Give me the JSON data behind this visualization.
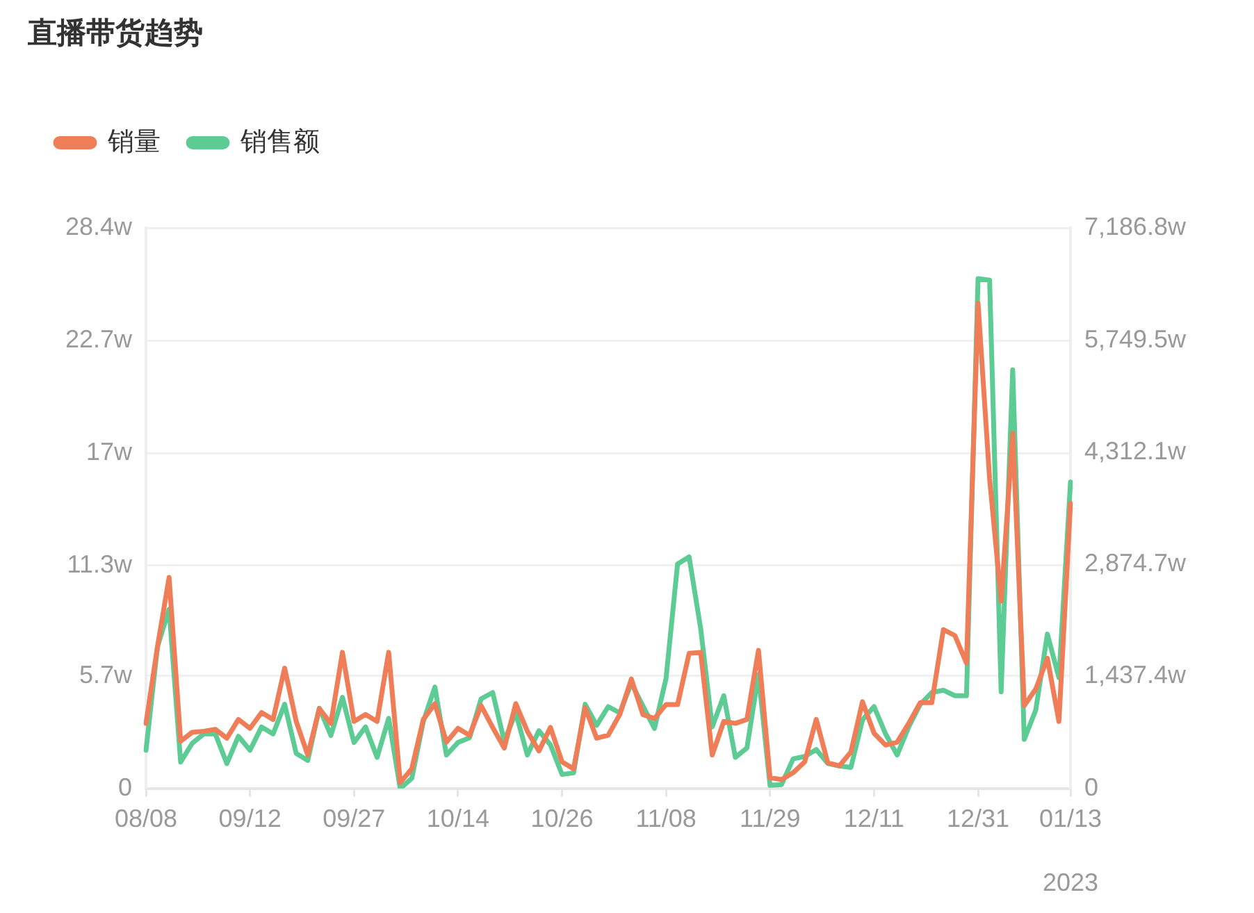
{
  "chart_data": {
    "type": "line",
    "title": "直播带货趋势",
    "categories": [
      "08/08",
      null,
      null,
      null,
      null,
      null,
      null,
      null,
      null,
      "09/12",
      null,
      null,
      null,
      null,
      null,
      null,
      null,
      null,
      "09/27",
      null,
      null,
      null,
      null,
      null,
      null,
      null,
      null,
      "10/14",
      null,
      null,
      null,
      null,
      null,
      null,
      null,
      null,
      "10/26",
      null,
      null,
      null,
      null,
      null,
      null,
      null,
      null,
      "11/08",
      null,
      null,
      null,
      null,
      null,
      null,
      null,
      null,
      "11/29",
      null,
      null,
      null,
      null,
      null,
      null,
      null,
      null,
      "12/11",
      null,
      null,
      null,
      null,
      null,
      null,
      null,
      null,
      "12/31",
      null,
      null,
      null,
      null,
      null,
      null,
      null,
      "01/13"
    ],
    "series": [
      {
        "name": "销量",
        "color": "#ef7d57",
        "values": [
          3.3,
          7.2,
          10.7,
          2.4,
          2.85,
          2.9,
          3.0,
          2.55,
          3.5,
          3.05,
          3.85,
          3.5,
          6.1,
          3.4,
          1.7,
          4.05,
          3.3,
          6.9,
          3.4,
          3.75,
          3.4,
          6.9,
          0.3,
          1.0,
          3.5,
          4.3,
          2.35,
          3.05,
          2.7,
          4.2,
          3.1,
          2.05,
          4.3,
          2.9,
          1.9,
          3.1,
          1.35,
          1.0,
          4.1,
          2.55,
          2.7,
          3.75,
          5.55,
          3.75,
          3.55,
          4.25,
          4.25,
          6.85,
          6.9,
          1.7,
          3.4,
          3.3,
          3.5,
          7.0,
          0.55,
          0.45,
          0.8,
          1.35,
          3.5,
          1.3,
          1.15,
          1.85,
          4.4,
          2.8,
          2.2,
          2.35,
          3.3,
          4.35,
          4.35,
          8.05,
          7.75,
          6.35,
          24.6,
          15.7,
          9.5,
          18,
          4.2,
          5.05,
          6.6,
          3.4,
          14.45
        ]
      },
      {
        "name": "销售额",
        "color": "#5ccb94",
        "axis": "y2",
        "values": [
          490,
          1820,
          2300,
          340,
          580,
          700,
          700,
          320,
          670,
          490,
          790,
          700,
          1080,
          450,
          360,
          1030,
          680,
          1170,
          590,
          790,
          400,
          900,
          0,
          130,
          860,
          1300,
          430,
          590,
          650,
          1150,
          1230,
          610,
          970,
          430,
          740,
          560,
          180,
          200,
          1080,
          810,
          1050,
          970,
          1350,
          1060,
          770,
          1410,
          2880,
          2970,
          2050,
          790,
          1190,
          400,
          520,
          1460,
          40,
          50,
          380,
          410,
          500,
          320,
          290,
          270,
          880,
          1050,
          700,
          430,
          790,
          1080,
          1230,
          1260,
          1190,
          1190,
          6540,
          6520,
          1240,
          5370,
          630,
          1010,
          1980,
          1420,
          3930
        ]
      }
    ],
    "ylim": [
      0,
      28.4
    ],
    "yticks": [
      {
        "value": 0,
        "label": "0"
      },
      {
        "value": 5.7,
        "label": "5.7w"
      },
      {
        "value": 11.3,
        "label": "11.3w"
      },
      {
        "value": 17,
        "label": "17w"
      },
      {
        "value": 22.7,
        "label": "22.7w"
      },
      {
        "value": 28.4,
        "label": "28.4w"
      }
    ],
    "y2lim": [
      0,
      7186.8
    ],
    "y2ticks": [
      {
        "value": 0,
        "label": "0"
      },
      {
        "value": 1437.4,
        "label": "1,437.4w"
      },
      {
        "value": 2874.7,
        "label": "2,874.7w"
      },
      {
        "value": 4312.1,
        "label": "4,312.1w"
      },
      {
        "value": 5749.5,
        "label": "5,749.5w"
      },
      {
        "value": 7186.8,
        "label": "7,186.8w"
      }
    ],
    "grid": "y",
    "legend": "top left",
    "annotations": [
      "2023"
    ]
  }
}
